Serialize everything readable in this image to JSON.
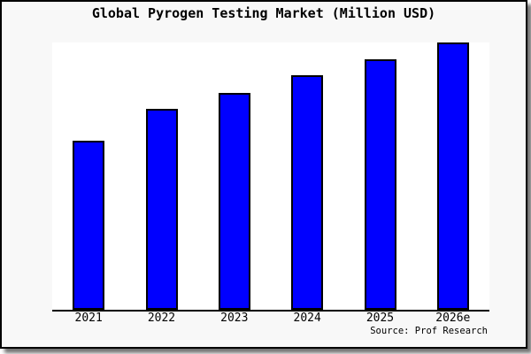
{
  "figure": {
    "background_color": "#f8f8f8",
    "plot_background_color": "#ffffff",
    "border_color": "#000000",
    "source_note": "Source: Prof Research"
  },
  "chart_data": {
    "type": "bar",
    "title": "Global Pyrogen Testing Market (Million USD)",
    "categories": [
      "2021",
      "2022",
      "2023",
      "2024",
      "2025",
      "2026e"
    ],
    "values": [
      191,
      227,
      245,
      265,
      283,
      302
    ],
    "values_unit": "pixel heights (chart displays no numeric value axis, gridlines or data labels)",
    "xlabel": "",
    "ylabel": "",
    "grid": false,
    "legend": false,
    "bar_color": "#0000ff",
    "bar_border_color": "#000000",
    "axis_line_color": "#000000"
  }
}
